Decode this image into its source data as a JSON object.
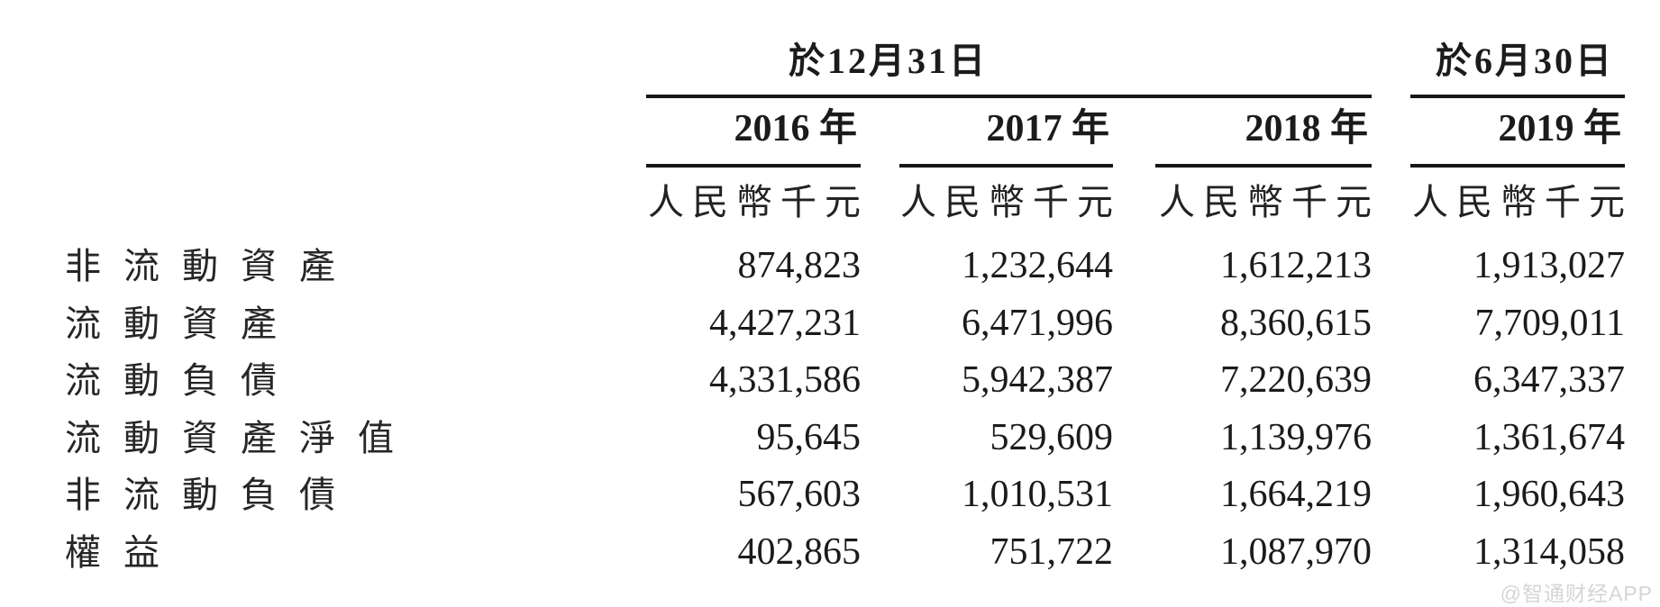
{
  "table": {
    "group_headers": [
      {
        "label": "於12月31日",
        "spans_years": [
          "2016",
          "2017",
          "2018"
        ]
      },
      {
        "label": "於6月30日",
        "spans_years": [
          "2019"
        ]
      }
    ],
    "columns": [
      {
        "year": "2016 年",
        "unit": "人民幣千元"
      },
      {
        "year": "2017 年",
        "unit": "人民幣千元"
      },
      {
        "year": "2018 年",
        "unit": "人民幣千元"
      },
      {
        "year": "2019 年",
        "unit": "人民幣千元"
      }
    ],
    "rows": [
      {
        "label": "非流動資產",
        "values": [
          "874,823",
          "1,232,644",
          "1,612,213",
          "1,913,027"
        ]
      },
      {
        "label": "流動資產",
        "values": [
          "4,427,231",
          "6,471,996",
          "8,360,615",
          "7,709,011"
        ]
      },
      {
        "label": "流動負債",
        "values": [
          "4,331,586",
          "5,942,387",
          "7,220,639",
          "6,347,337"
        ]
      },
      {
        "label": "流動資產淨值",
        "values": [
          "95,645",
          "529,609",
          "1,139,976",
          "1,361,674"
        ]
      },
      {
        "label": "非流動負債",
        "values": [
          "567,603",
          "1,010,531",
          "1,664,219",
          "1,960,643"
        ]
      },
      {
        "label": "權益",
        "values": [
          "402,865",
          "751,722",
          "1,087,970",
          "1,314,058"
        ]
      }
    ]
  },
  "watermark": {
    "text": "@智通财经APP"
  },
  "colors": {
    "background": "#ffffff",
    "text": "#1b1b1b",
    "rule": "#161616",
    "watermark": "#d5d5d5"
  }
}
